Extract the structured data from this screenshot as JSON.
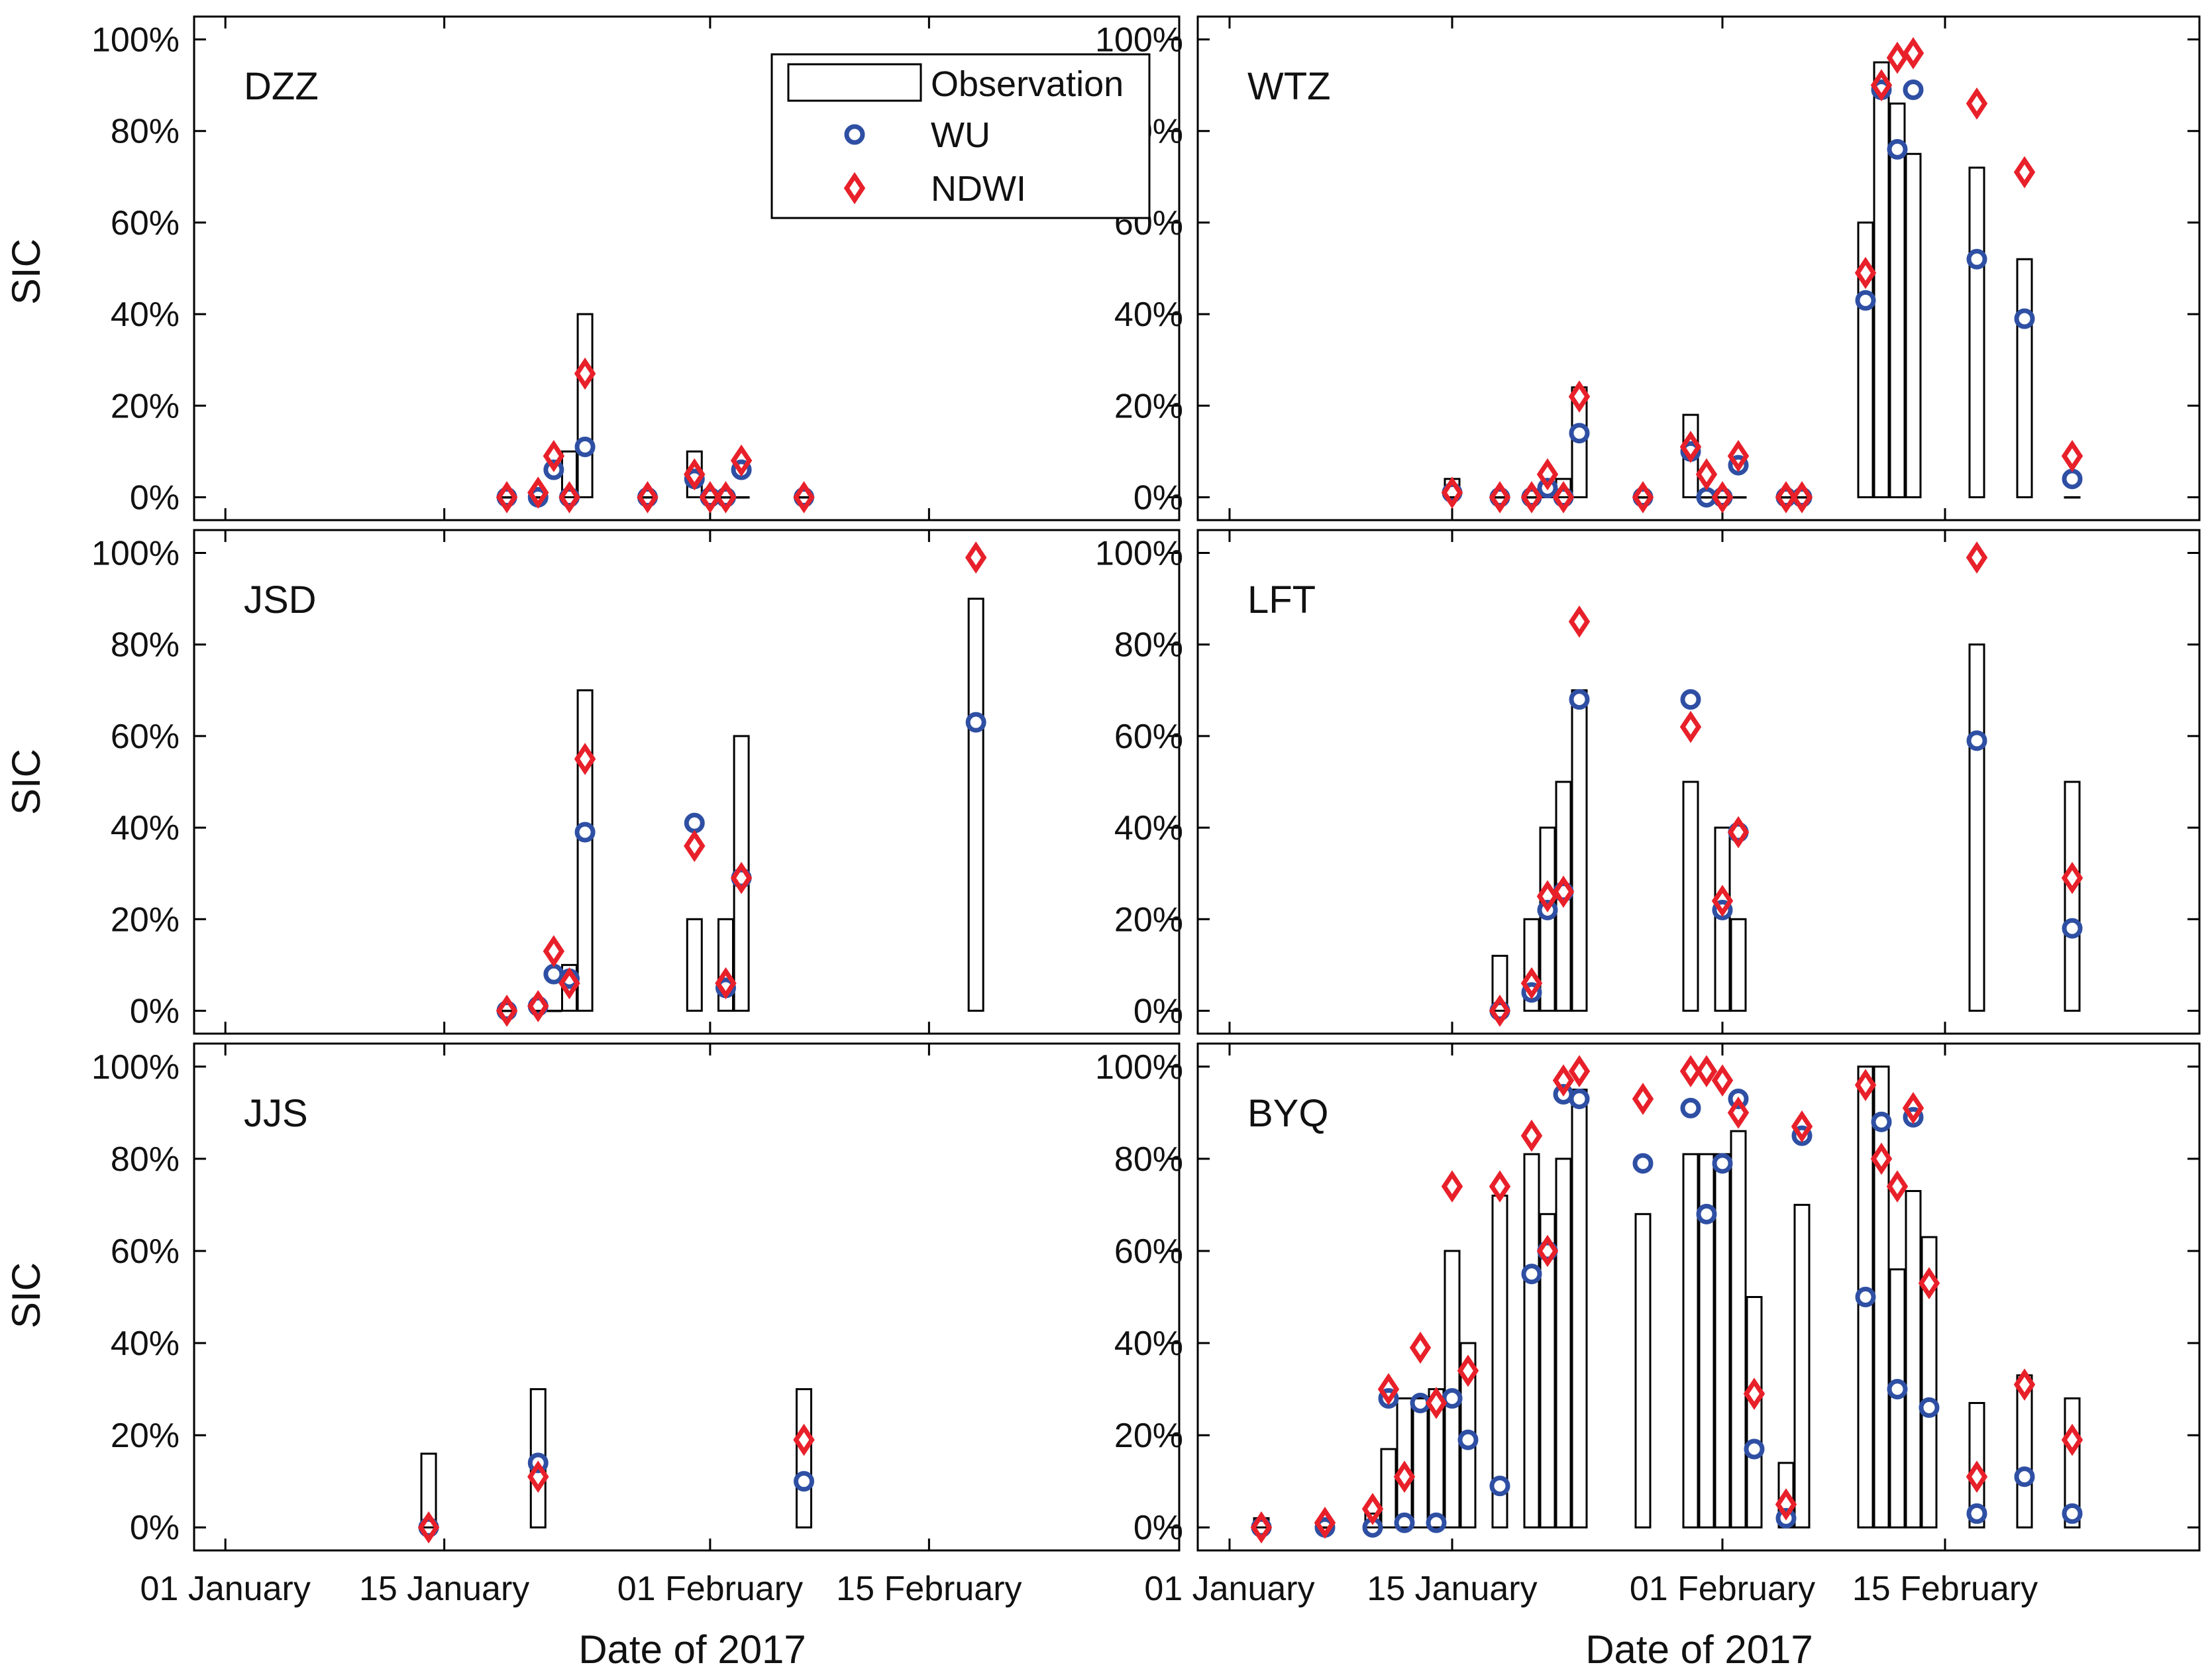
{
  "colors": {
    "observation": "#000000",
    "wu": "#2e4fa3",
    "ndwi": "#e8202a",
    "axis": "#000000"
  },
  "legend": [
    {
      "key": "observation",
      "label": "Observation",
      "marker": "bar"
    },
    {
      "key": "wu",
      "label": "WU",
      "marker": "circle"
    },
    {
      "key": "ndwi",
      "label": "NDWI",
      "marker": "diamond"
    }
  ],
  "chart_data": {
    "type": "bar",
    "title": "",
    "xlabel": "Date of 2017",
    "ylabel": "SIC",
    "y_tick_labels": [
      "0%",
      "20%",
      "40%",
      "60%",
      "80%",
      "100%"
    ],
    "y_ticks": [
      0,
      20,
      40,
      60,
      80,
      100
    ],
    "ylim": [
      -5,
      105
    ],
    "x_tick_labels": [
      "01 January",
      "15 January",
      "01 February",
      "15 February"
    ],
    "x_tick_days": [
      1,
      15,
      32,
      46
    ],
    "xlim_days": [
      -1,
      62
    ],
    "x_unit": "day of year 2017",
    "panels": [
      {
        "name": "DZZ",
        "observation": [
          [
            19,
            0
          ],
          [
            21,
            0
          ],
          [
            23,
            10
          ],
          [
            24,
            40
          ],
          [
            28,
            0
          ],
          [
            31,
            10
          ],
          [
            32,
            0
          ],
          [
            33,
            0
          ],
          [
            34,
            0
          ],
          [
            38,
            0
          ]
        ],
        "wu": [
          [
            19,
            0
          ],
          [
            21,
            0
          ],
          [
            22,
            6
          ],
          [
            23,
            0
          ],
          [
            24,
            11
          ],
          [
            28,
            0
          ],
          [
            31,
            4
          ],
          [
            32,
            0
          ],
          [
            33,
            0
          ],
          [
            34,
            6
          ],
          [
            38,
            0
          ]
        ],
        "ndwi": [
          [
            19,
            0
          ],
          [
            21,
            1
          ],
          [
            22,
            9
          ],
          [
            23,
            0
          ],
          [
            24,
            27
          ],
          [
            28,
            0
          ],
          [
            31,
            5
          ],
          [
            32,
            0
          ],
          [
            33,
            0
          ],
          [
            34,
            8
          ],
          [
            38,
            0
          ]
        ]
      },
      {
        "name": "WTZ",
        "observation": [
          [
            15,
            4
          ],
          [
            18,
            0
          ],
          [
            20,
            0
          ],
          [
            21,
            3
          ],
          [
            22,
            4
          ],
          [
            23,
            24
          ],
          [
            27,
            0
          ],
          [
            30,
            18
          ],
          [
            31,
            0
          ],
          [
            32,
            0
          ],
          [
            33,
            0
          ],
          [
            36,
            0
          ],
          [
            37,
            0
          ],
          [
            41,
            60
          ],
          [
            42,
            95
          ],
          [
            43,
            86
          ],
          [
            44,
            75
          ],
          [
            48,
            72
          ],
          [
            51,
            52
          ],
          [
            54,
            0
          ]
        ],
        "wu": [
          [
            15,
            1
          ],
          [
            18,
            0
          ],
          [
            20,
            0
          ],
          [
            21,
            2
          ],
          [
            22,
            0
          ],
          [
            23,
            14
          ],
          [
            27,
            0
          ],
          [
            30,
            10
          ],
          [
            31,
            0
          ],
          [
            32,
            0
          ],
          [
            33,
            7
          ],
          [
            36,
            0
          ],
          [
            37,
            0
          ],
          [
            41,
            43
          ],
          [
            42,
            89
          ],
          [
            43,
            76
          ],
          [
            44,
            89
          ],
          [
            48,
            52
          ],
          [
            51,
            39
          ],
          [
            54,
            4
          ]
        ],
        "ndwi": [
          [
            15,
            1
          ],
          [
            18,
            0
          ],
          [
            20,
            0
          ],
          [
            21,
            5
          ],
          [
            22,
            0
          ],
          [
            23,
            22
          ],
          [
            27,
            0
          ],
          [
            30,
            11
          ],
          [
            31,
            5
          ],
          [
            32,
            0
          ],
          [
            33,
            9
          ],
          [
            36,
            0
          ],
          [
            37,
            0
          ],
          [
            41,
            49
          ],
          [
            42,
            90
          ],
          [
            43,
            96
          ],
          [
            44,
            97
          ],
          [
            48,
            86
          ],
          [
            51,
            71
          ],
          [
            54,
            9
          ]
        ]
      },
      {
        "name": "JSD",
        "observation": [
          [
            19,
            0
          ],
          [
            21,
            0
          ],
          [
            22,
            0
          ],
          [
            23,
            10
          ],
          [
            24,
            70
          ],
          [
            31,
            20
          ],
          [
            33,
            20
          ],
          [
            34,
            60
          ],
          [
            49,
            90
          ]
        ],
        "wu": [
          [
            19,
            0
          ],
          [
            21,
            1
          ],
          [
            22,
            8
          ],
          [
            23,
            7
          ],
          [
            24,
            39
          ],
          [
            31,
            41
          ],
          [
            33,
            5
          ],
          [
            34,
            29
          ],
          [
            49,
            63
          ]
        ],
        "ndwi": [
          [
            19,
            0
          ],
          [
            21,
            1
          ],
          [
            22,
            13
          ],
          [
            23,
            6
          ],
          [
            24,
            55
          ],
          [
            31,
            36
          ],
          [
            33,
            6
          ],
          [
            34,
            29
          ],
          [
            49,
            99
          ]
        ]
      },
      {
        "name": "LFT",
        "observation": [
          [
            18,
            12
          ],
          [
            20,
            20
          ],
          [
            21,
            40
          ],
          [
            22,
            50
          ],
          [
            23,
            70
          ],
          [
            30,
            50
          ],
          [
            32,
            40
          ],
          [
            33,
            20
          ],
          [
            48,
            80
          ],
          [
            54,
            50
          ]
        ],
        "wu": [
          [
            18,
            0
          ],
          [
            20,
            4
          ],
          [
            21,
            22
          ],
          [
            22,
            26
          ],
          [
            23,
            68
          ],
          [
            30,
            68
          ],
          [
            32,
            22
          ],
          [
            33,
            39
          ],
          [
            48,
            59
          ],
          [
            54,
            18
          ]
        ],
        "ndwi": [
          [
            18,
            0
          ],
          [
            20,
            6
          ],
          [
            21,
            25
          ],
          [
            22,
            26
          ],
          [
            23,
            85
          ],
          [
            30,
            62
          ],
          [
            32,
            24
          ],
          [
            33,
            39
          ],
          [
            48,
            99
          ],
          [
            54,
            29
          ]
        ]
      },
      {
        "name": "JJS",
        "observation": [
          [
            14,
            16
          ],
          [
            21,
            30
          ],
          [
            38,
            30
          ]
        ],
        "wu": [
          [
            14,
            0
          ],
          [
            21,
            14
          ],
          [
            38,
            10
          ]
        ],
        "ndwi": [
          [
            14,
            0
          ],
          [
            21,
            11
          ],
          [
            38,
            19
          ]
        ]
      },
      {
        "name": "BYQ",
        "observation": [
          [
            3,
            2
          ],
          [
            7,
            0
          ],
          [
            10,
            3
          ],
          [
            11,
            17
          ],
          [
            12,
            28
          ],
          [
            13,
            28
          ],
          [
            14,
            30
          ],
          [
            15,
            60
          ],
          [
            16,
            40
          ],
          [
            18,
            72
          ],
          [
            20,
            81
          ],
          [
            21,
            68
          ],
          [
            22,
            80
          ],
          [
            23,
            95
          ],
          [
            27,
            68
          ],
          [
            30,
            81
          ],
          [
            31,
            81
          ],
          [
            32,
            81
          ],
          [
            33,
            86
          ],
          [
            34,
            50
          ],
          [
            36,
            14
          ],
          [
            37,
            70
          ],
          [
            41,
            100
          ],
          [
            42,
            100
          ],
          [
            43,
            56
          ],
          [
            44,
            73
          ],
          [
            45,
            63
          ],
          [
            48,
            27
          ],
          [
            51,
            33
          ],
          [
            54,
            28
          ]
        ],
        "wu": [
          [
            3,
            0
          ],
          [
            7,
            0
          ],
          [
            10,
            0
          ],
          [
            11,
            28
          ],
          [
            12,
            1
          ],
          [
            13,
            27
          ],
          [
            14,
            1
          ],
          [
            15,
            28
          ],
          [
            16,
            19
          ],
          [
            18,
            9
          ],
          [
            20,
            55
          ],
          [
            21,
            60
          ],
          [
            22,
            94
          ],
          [
            23,
            93
          ],
          [
            27,
            79
          ],
          [
            30,
            91
          ],
          [
            31,
            68
          ],
          [
            32,
            79
          ],
          [
            33,
            93
          ],
          [
            34,
            17
          ],
          [
            36,
            2
          ],
          [
            37,
            85
          ],
          [
            41,
            50
          ],
          [
            42,
            88
          ],
          [
            43,
            30
          ],
          [
            44,
            89
          ],
          [
            45,
            26
          ],
          [
            48,
            3
          ],
          [
            51,
            11
          ],
          [
            54,
            3
          ]
        ],
        "ndwi": [
          [
            3,
            0
          ],
          [
            7,
            1
          ],
          [
            10,
            4
          ],
          [
            11,
            30
          ],
          [
            12,
            11
          ],
          [
            13,
            39
          ],
          [
            14,
            27
          ],
          [
            15,
            74
          ],
          [
            16,
            34
          ],
          [
            18,
            74
          ],
          [
            20,
            85
          ],
          [
            21,
            60
          ],
          [
            22,
            97
          ],
          [
            23,
            99
          ],
          [
            27,
            93
          ],
          [
            30,
            99
          ],
          [
            31,
            99
          ],
          [
            32,
            97
          ],
          [
            33,
            90
          ],
          [
            34,
            29
          ],
          [
            36,
            5
          ],
          [
            37,
            87
          ],
          [
            41,
            96
          ],
          [
            42,
            80
          ],
          [
            43,
            74
          ],
          [
            44,
            91
          ],
          [
            45,
            53
          ],
          [
            48,
            11
          ],
          [
            51,
            31
          ],
          [
            54,
            19
          ]
        ]
      }
    ]
  }
}
